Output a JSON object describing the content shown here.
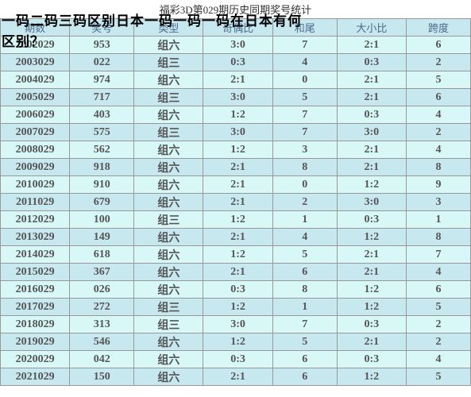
{
  "title": "福彩3D第029期历史同期奖号统计",
  "overlay_top": "一码二码三码区别日本一码一码一码在日本有何",
  "overlay_left": "区别？",
  "columns": [
    "期数",
    "奖号",
    "类型",
    "奇偶比",
    "和尾",
    "大小比",
    "跨度"
  ],
  "rows": [
    [
      "2002029",
      "953",
      "组六",
      "3:0",
      "7",
      "2:1",
      "6"
    ],
    [
      "2003029",
      "022",
      "组三",
      "0:3",
      "4",
      "0:3",
      "2"
    ],
    [
      "2004029",
      "974",
      "组六",
      "2:1",
      "0",
      "2:1",
      "5"
    ],
    [
      "2005029",
      "717",
      "组三",
      "3:0",
      "5",
      "2:1",
      "6"
    ],
    [
      "2006029",
      "403",
      "组六",
      "1:2",
      "7",
      "0:3",
      "4"
    ],
    [
      "2007029",
      "575",
      "组三",
      "3:0",
      "7",
      "3:0",
      "2"
    ],
    [
      "2008029",
      "562",
      "组六",
      "1:2",
      "3",
      "2:1",
      "4"
    ],
    [
      "2009029",
      "918",
      "组六",
      "2:1",
      "8",
      "2:1",
      "8"
    ],
    [
      "2010029",
      "910",
      "组六",
      "2:1",
      "0",
      "1:2",
      "9"
    ],
    [
      "2011029",
      "679",
      "组六",
      "2:1",
      "2",
      "3:0",
      "3"
    ],
    [
      "2012029",
      "100",
      "组三",
      "1:2",
      "1",
      "0:3",
      "1"
    ],
    [
      "2013029",
      "149",
      "组六",
      "2:1",
      "4",
      "1:2",
      "8"
    ],
    [
      "2014029",
      "618",
      "组六",
      "1:2",
      "5",
      "2:1",
      "7"
    ],
    [
      "2015029",
      "367",
      "组六",
      "2:1",
      "6",
      "2:1",
      "4"
    ],
    [
      "2016029",
      "026",
      "组六",
      "0:3",
      "8",
      "1:2",
      "6"
    ],
    [
      "2017029",
      "272",
      "组三",
      "1:2",
      "1",
      "1:2",
      "5"
    ],
    [
      "2018029",
      "313",
      "组三",
      "3:0",
      "7",
      "0:3",
      "2"
    ],
    [
      "2019029",
      "546",
      "组六",
      "1:2",
      "5",
      "2:1",
      "2"
    ],
    [
      "2020029",
      "042",
      "组六",
      "0:3",
      "6",
      "0:3",
      "4"
    ],
    [
      "2021029",
      "150",
      "组六",
      "2:1",
      "6",
      "1:2",
      "5"
    ]
  ],
  "colors": {
    "header_bg": "#c8e8f0",
    "row_odd_bg": "#d8f8f8",
    "row_even_bg": "#c8e8f0",
    "border": "#999",
    "header_text": "#4a6a8a",
    "cell_text": "#555"
  }
}
